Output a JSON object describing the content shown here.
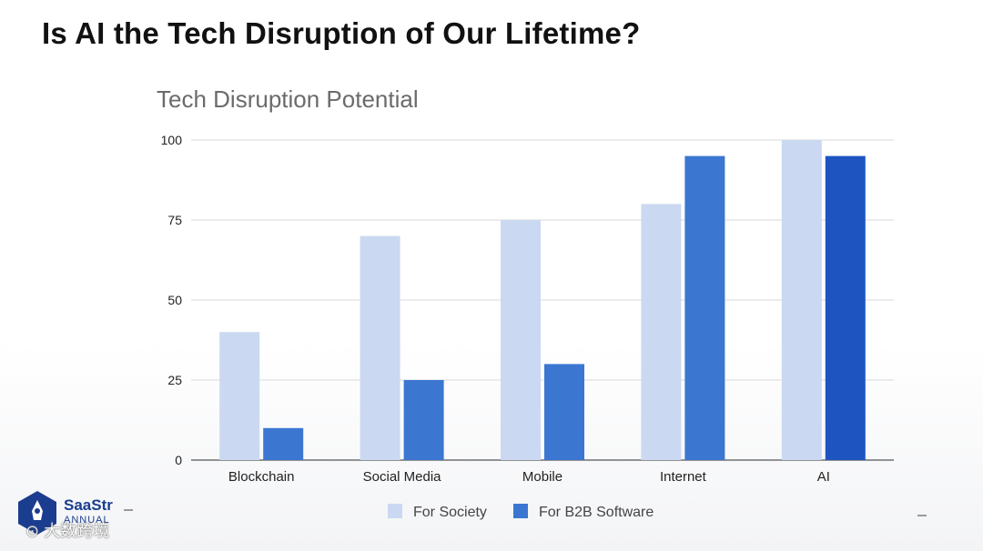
{
  "slide": {
    "title": "Is AI the Tech Disruption of Our Lifetime?"
  },
  "chart_data": {
    "type": "bar",
    "title": "Tech Disruption Potential",
    "categories": [
      "Blockchain",
      "Social Media",
      "Mobile",
      "Internet",
      "AI"
    ],
    "series": [
      {
        "name": "For Society",
        "values": [
          40,
          70,
          75,
          80,
          100
        ],
        "color": "#cad9f1"
      },
      {
        "name": "For B2B Software",
        "values": [
          10,
          25,
          30,
          95,
          95
        ],
        "color": "#3b76d1"
      }
    ],
    "ylim": [
      0,
      100
    ],
    "yticks": [
      0,
      25,
      50,
      75,
      100
    ],
    "xlabel": "",
    "ylabel": "",
    "grid": true,
    "legend_position": "bottom",
    "highlight_color": "#1d54c0"
  },
  "logo": {
    "name": "SaaStr",
    "subtitle": "ANNUAL"
  },
  "watermark": {
    "text": "大数跨境"
  }
}
